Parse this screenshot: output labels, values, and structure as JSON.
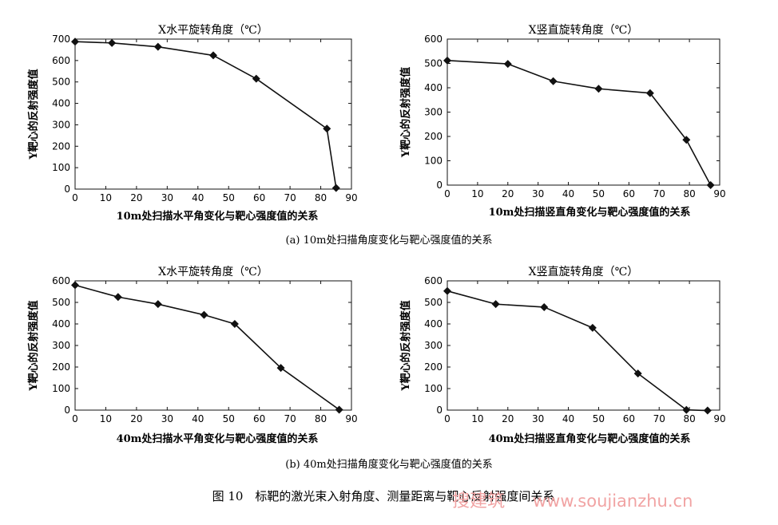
{
  "chart_data": [
    {
      "type": "line",
      "title": "X水平旋转角度（℃）",
      "xlabel": "10m处扫描水平角变化与靶心强度值的关系",
      "ylabel": "Y靶心的反射强度值",
      "xlim": [
        0,
        90
      ],
      "ylim": [
        0,
        700
      ],
      "xticks": [
        "0",
        "10",
        "20",
        "30",
        "40",
        "50",
        "60",
        "70",
        "80",
        "90"
      ],
      "yticks": [
        "0",
        "100",
        "200",
        "300",
        "400",
        "500",
        "600",
        "700"
      ],
      "grid": false,
      "series": [
        {
          "x": [
            0,
            12,
            27,
            45,
            59,
            82,
            85
          ],
          "y": [
            688,
            682,
            664,
            624,
            515,
            282,
            5
          ]
        }
      ]
    },
    {
      "type": "line",
      "title": "X竖直旋转角度（℃）",
      "xlabel": "10m处扫描竖直角变化与靶心强度值的关系",
      "ylabel": "Y靶心的反射强度值",
      "xlim": [
        0,
        90
      ],
      "ylim": [
        0,
        600
      ],
      "xticks": [
        "0",
        "10",
        "20",
        "30",
        "40",
        "50",
        "60",
        "70",
        "80",
        "90"
      ],
      "yticks": [
        "0",
        "100",
        "200",
        "300",
        "400",
        "500",
        "600"
      ],
      "grid": false,
      "series": [
        {
          "x": [
            0,
            20,
            35,
            50,
            67,
            79,
            87
          ],
          "y": [
            512,
            498,
            427,
            396,
            378,
            186,
            0
          ]
        }
      ]
    },
    {
      "type": "line",
      "title": "X水平旋转角度（℃）",
      "xlabel": "40m处扫描水平角变化与靶心强度值的关系",
      "ylabel": "Y靶心的反射强度值",
      "xlim": [
        0,
        90
      ],
      "ylim": [
        0,
        600
      ],
      "xticks": [
        "0",
        "10",
        "20",
        "30",
        "40",
        "50",
        "60",
        "70",
        "80",
        "90"
      ],
      "yticks": [
        "0",
        "100",
        "200",
        "300",
        "400",
        "500",
        "600"
      ],
      "grid": false,
      "series": [
        {
          "x": [
            0,
            14,
            27,
            42,
            52,
            67,
            86
          ],
          "y": [
            580,
            525,
            492,
            442,
            400,
            196,
            2
          ]
        }
      ]
    },
    {
      "type": "line",
      "title": "X竖直旋转角度（℃）",
      "xlabel": "40m处扫描竖直角变化与靶心强度值的关系",
      "ylabel": "Y靶心的反射强度值",
      "xlim": [
        0,
        90
      ],
      "ylim": [
        0,
        600
      ],
      "xticks": [
        "0",
        "10",
        "20",
        "30",
        "40",
        "50",
        "60",
        "70",
        "80",
        "90"
      ],
      "yticks": [
        "0",
        "100",
        "200",
        "300",
        "400",
        "500",
        "600"
      ],
      "grid": false,
      "series": [
        {
          "x": [
            0,
            16,
            32,
            48,
            63,
            79,
            86
          ],
          "y": [
            553,
            492,
            478,
            382,
            170,
            1,
            -2
          ]
        }
      ]
    }
  ],
  "captions": {
    "sub_a": "(a) 10m处扫描角度变化与靶心强度值的关系",
    "sub_b": "(b) 40m处扫描角度变化与靶心强度值的关系",
    "figure": "图 10　标靶的激光束入射角度、测量距离与靶心反射强度间关系"
  },
  "watermark": {
    "brand": "搜建筑",
    "url": "www.soujianzhu.cn"
  },
  "colors": {
    "ink": "#111111",
    "watermark": "#f1a3a3"
  }
}
